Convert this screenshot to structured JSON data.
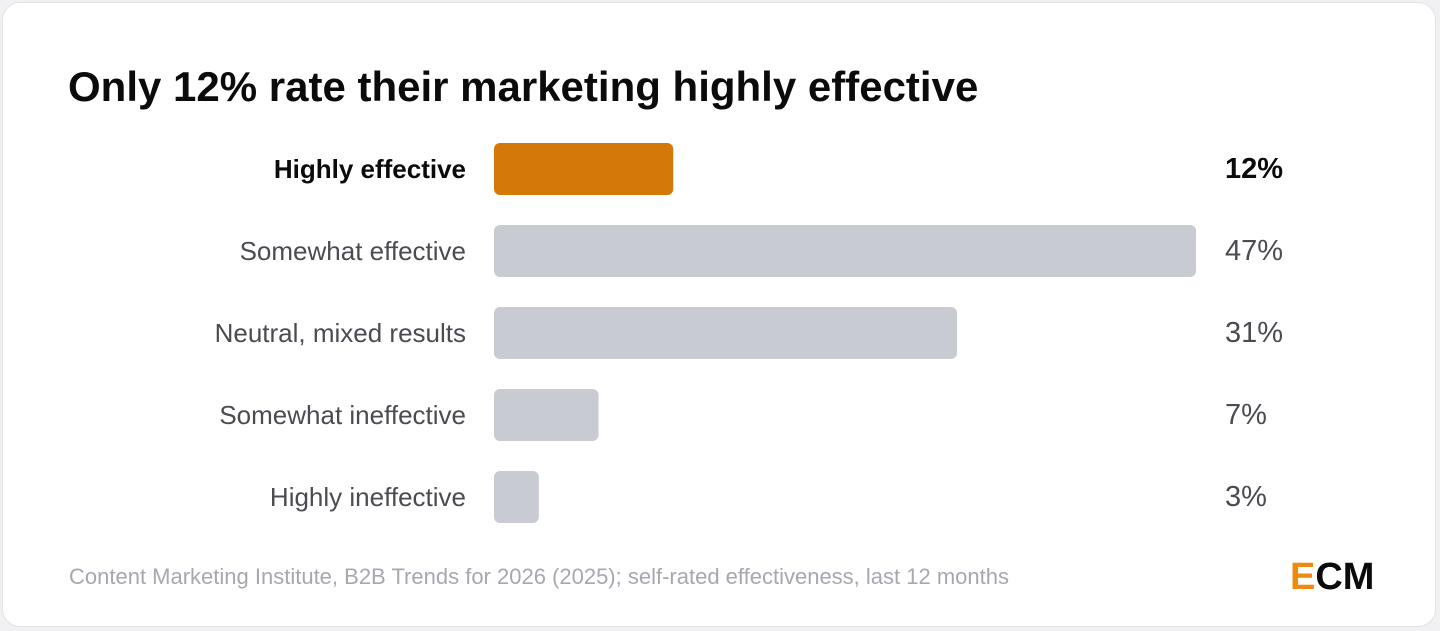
{
  "title": "Only 12% rate their marketing highly effective",
  "chart_data": {
    "type": "bar",
    "orientation": "horizontal",
    "title": "Only 12% rate their marketing highly effective",
    "categories": [
      "Highly effective",
      "Somewhat effective",
      "Neutral, mixed results",
      "Somewhat ineffective",
      "Highly ineffective"
    ],
    "values": [
      12,
      47,
      31,
      7,
      3
    ],
    "value_labels": [
      "12%",
      "47%",
      "31%",
      "7%",
      "3%"
    ],
    "highlight_index": 0,
    "xlim": [
      0,
      47
    ],
    "grid": false,
    "legend": "none"
  },
  "colors": {
    "highlight": "#d4780a",
    "bar": "#c8cbd2",
    "label_highlight": "#0b0b0c",
    "label": "#4a4c52"
  },
  "footer": {
    "source": "Content Marketing Institute, B2B Trends for 2026 (2025); self-rated effectiveness, last 12 months"
  },
  "logo": {
    "first_letter": "E",
    "rest": "CM"
  }
}
